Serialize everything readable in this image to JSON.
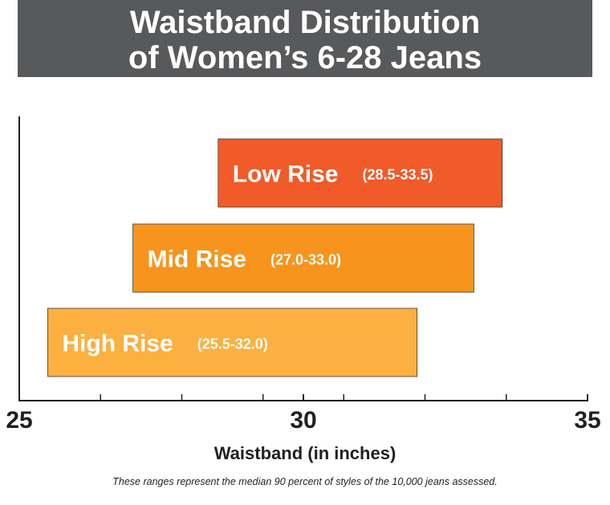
{
  "title": {
    "line1": "Waistband Distribution",
    "line2": "of Women’s 6-28 Jeans"
  },
  "colors": {
    "banner": "#58595b",
    "low_rise": "#f15a29",
    "mid_rise": "#f7941d",
    "high_rise": "#fbb040",
    "axis": "#231f20"
  },
  "chart_data": {
    "type": "bar",
    "orientation": "horizontal-range",
    "title": "Waistband Distribution of Women’s 6-28 Jeans",
    "xlabel": "Waistband (in inches)",
    "ylabel": "",
    "xlim": [
      25,
      35
    ],
    "tick_labels": [
      "25",
      "30",
      "35"
    ],
    "major_ticks": [
      25,
      30,
      35
    ],
    "minor_ticks": [
      26.43,
      27.86,
      29.29,
      30.71,
      32.14,
      33.57
    ],
    "series": [
      {
        "name": "Low Rise",
        "range_label": "(28.5-33.5)",
        "start": 28.5,
        "end": 33.5,
        "color": "#f15a29"
      },
      {
        "name": "Mid Rise",
        "range_label": "(27.0-33.0)",
        "start": 27.0,
        "end": 33.0,
        "color": "#f7941d"
      },
      {
        "name": "High Rise",
        "range_label": "(25.5-32.0)",
        "start": 25.5,
        "end": 32.0,
        "color": "#fbb040"
      }
    ],
    "grid": false,
    "legend": "none"
  },
  "footnote": "These ranges represent the median 90 percent of styles of the 10,000 jeans assessed."
}
